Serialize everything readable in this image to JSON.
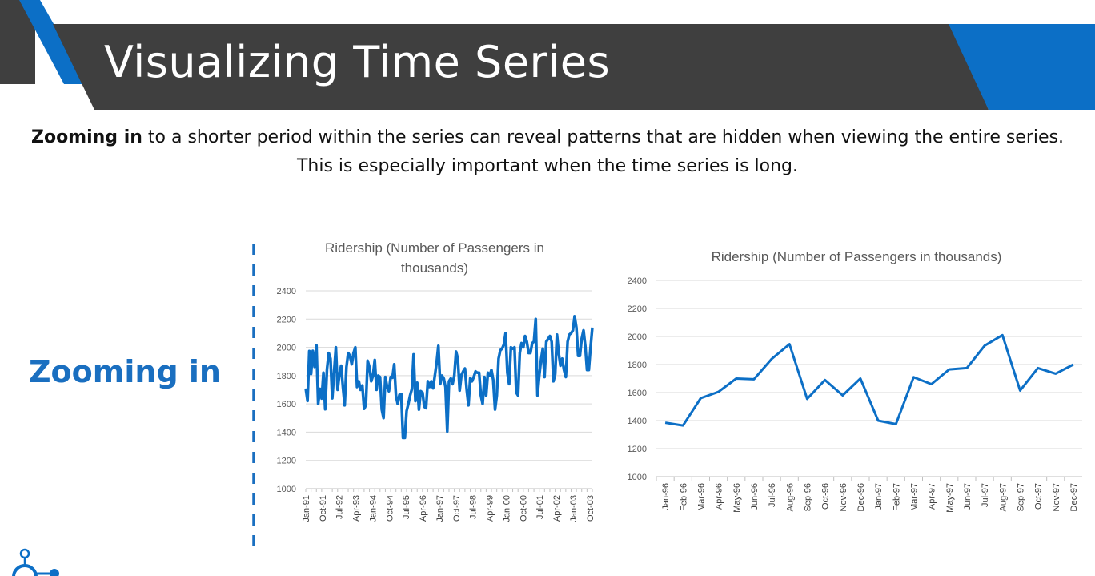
{
  "slide": {
    "title": "Visualizing Time Series",
    "intro_bold": "Zooming in",
    "intro_rest": " to a shorter period within the series can reveal patterns that are hidden when viewing the entire series. This is especially important when the time series is long.",
    "side_label": "Zooming in"
  },
  "colors": {
    "banner_dark": "#3f3f3f",
    "banner_blue": "#0c6fc6",
    "line": "#0c6fc6",
    "divider": "#1a6fc0"
  },
  "chart_data": [
    {
      "type": "line",
      "title": "Ridership (Number of Passengers in thousands)",
      "title_lines": [
        "Ridership (Number of Passengers in",
        "thousands)"
      ],
      "ylim": [
        1000,
        2400
      ],
      "yticks": [
        1000,
        1200,
        1400,
        1600,
        1800,
        2000,
        2200,
        2400
      ],
      "xticklabels": [
        "Jan-91",
        "Oct-91",
        "Jul-92",
        "Apr-93",
        "Jan-94",
        "Oct-94",
        "Jul-95",
        "Apr-96",
        "Jan-97",
        "Oct-97",
        "Jul-98",
        "Apr-99",
        "Jan-00",
        "Oct-00",
        "Jul-01",
        "Apr-02",
        "Jan-03",
        "Oct-03"
      ],
      "grid": true,
      "series": [
        {
          "values": [
            1709,
            1621,
            1973,
            1812,
            1975,
            1862,
            2014,
            1600,
            1706,
            1638,
            1820,
            1562,
            1845,
            1960,
            1920,
            1640,
            1825,
            2000,
            1700,
            1810,
            1870,
            1720,
            1590,
            1860,
            1960,
            1940,
            1880,
            1960,
            2000,
            1720,
            1760,
            1700,
            1730,
            1565,
            1590,
            1905,
            1860,
            1760,
            1800,
            1910,
            1700,
            1800,
            1790,
            1560,
            1500,
            1790,
            1720,
            1690,
            1790,
            1785,
            1880,
            1660,
            1600,
            1665,
            1670,
            1360,
            1360,
            1550,
            1600,
            1660,
            1705,
            1950,
            1620,
            1750,
            1560,
            1690,
            1680,
            1580,
            1570,
            1760,
            1720,
            1760,
            1710,
            1800,
            1890,
            2010,
            1740,
            1800,
            1780,
            1720,
            1405,
            1760,
            1780,
            1740,
            1800,
            1970,
            1920,
            1695,
            1805,
            1830,
            1850,
            1700,
            1590,
            1780,
            1760,
            1790,
            1830,
            1820,
            1820,
            1660,
            1600,
            1790,
            1660,
            1820,
            1800,
            1840,
            1770,
            1560,
            1660,
            1920,
            1980,
            1990,
            2020,
            2100,
            1820,
            1740,
            2000,
            1990,
            2000,
            1680,
            1660,
            1960,
            2030,
            2000,
            2080,
            2040,
            1960,
            1960,
            2030,
            2040,
            2200,
            1660,
            1800,
            1910,
            1990,
            1790,
            2040,
            2060,
            2080,
            2040,
            1760,
            1810,
            2090,
            1960,
            1870,
            1920,
            1840,
            1790,
            2040,
            2090,
            2100,
            2120,
            2220,
            2140,
            1940,
            1940,
            2060,
            2120,
            2010,
            1840,
            1840,
            2000,
            2140
          ]
        }
      ]
    },
    {
      "type": "line",
      "title": "Ridership (Number of Passengers in thousands)",
      "ylim": [
        1000,
        2400
      ],
      "yticks": [
        1000,
        1200,
        1400,
        1600,
        1800,
        2000,
        2200,
        2400
      ],
      "categories": [
        "Jan-96",
        "Feb-96",
        "Mar-96",
        "Apr-96",
        "May-96",
        "Jun-96",
        "Jul-96",
        "Aug-96",
        "Sep-96",
        "Oct-96",
        "Nov-96",
        "Dec-96",
        "Jan-97",
        "Feb-97",
        "Mar-97",
        "Apr-97",
        "May-97",
        "Jun-97",
        "Jul-97",
        "Aug-97",
        "Sep-97",
        "Oct-97",
        "Nov-97",
        "Dec-97"
      ],
      "grid": true,
      "series": [
        {
          "values": [
            1385,
            1365,
            1560,
            1605,
            1700,
            1695,
            1840,
            1945,
            1555,
            1690,
            1580,
            1700,
            1400,
            1375,
            1710,
            1660,
            1765,
            1775,
            1935,
            2010,
            1615,
            1775,
            1735,
            1800
          ]
        }
      ]
    }
  ]
}
